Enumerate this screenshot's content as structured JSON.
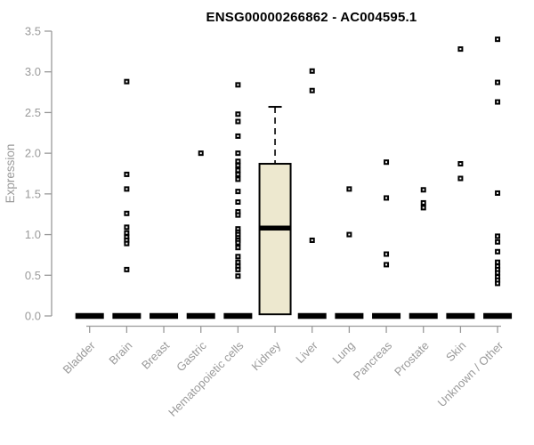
{
  "colors": {
    "axis": "#9A9A9A",
    "text": "#9A9A9A",
    "data": "#000000",
    "box_fill": "#EDE8CF",
    "background": "#FFFFFF"
  },
  "chart_data": {
    "type": "boxplot",
    "title": "ENSG00000266862 - AC004595.1",
    "ylabel": "Expression",
    "xlabel": "",
    "ylim": [
      0.0,
      3.5
    ],
    "yticks": [
      0.0,
      0.5,
      1.0,
      1.5,
      2.0,
      2.5,
      3.0,
      3.5
    ],
    "grid": false,
    "legend": false,
    "categories": [
      "Bladder",
      "Brain",
      "Breast",
      "Gastric",
      "Hematopoietic cells",
      "Kidney",
      "Liver",
      "Lung",
      "Pancreas",
      "Prostate",
      "Skin",
      "Unknown / Other"
    ],
    "zero_bar_note": "all categories except Kidney show a collapsed thick median bar at expression 0.0",
    "boxes": [
      {
        "category": "Kidney",
        "q1": 0.02,
        "median": 1.08,
        "q3": 1.87,
        "whisker_low": 0.02,
        "whisker_high": 2.57
      }
    ],
    "outliers": [
      {
        "category": "Bladder",
        "values": []
      },
      {
        "category": "Brain",
        "values": [
          2.88,
          1.74,
          1.56,
          1.26,
          1.09,
          1.02,
          0.97,
          0.93,
          0.89,
          0.57
        ]
      },
      {
        "category": "Breast",
        "values": []
      },
      {
        "category": "Gastric",
        "values": [
          2.0
        ]
      },
      {
        "category": "Hematopoietic cells",
        "values": [
          2.84,
          2.48,
          2.39,
          2.21,
          2.0,
          1.9,
          1.85,
          1.79,
          1.74,
          1.68,
          1.53,
          1.4,
          1.28,
          1.24,
          1.07,
          1.03,
          1.0,
          0.96,
          0.93,
          0.9,
          0.84,
          0.73,
          0.66,
          0.61,
          0.57,
          0.49
        ]
      },
      {
        "category": "Kidney",
        "values": []
      },
      {
        "category": "Liver",
        "values": [
          3.01,
          2.77,
          0.93
        ]
      },
      {
        "category": "Lung",
        "values": [
          1.56,
          1.0
        ]
      },
      {
        "category": "Pancreas",
        "values": [
          1.89,
          1.45,
          0.76,
          0.63
        ]
      },
      {
        "category": "Prostate",
        "values": [
          1.55,
          1.39,
          1.33
        ]
      },
      {
        "category": "Skin",
        "values": [
          3.28,
          1.87,
          1.69
        ]
      },
      {
        "category": "Unknown / Other",
        "values": [
          3.4,
          2.87,
          2.63,
          1.51,
          0.98,
          0.91,
          0.79,
          0.66,
          0.61,
          0.57,
          0.53,
          0.48,
          0.44,
          0.4
        ]
      }
    ]
  }
}
